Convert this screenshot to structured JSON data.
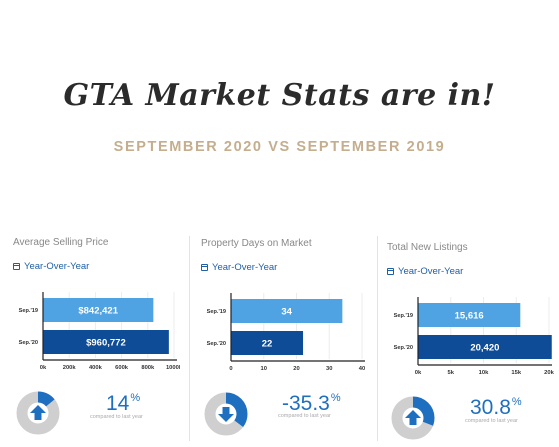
{
  "header": {
    "title": "GTA Market Stats are in!",
    "subtitle": "SEPTEMBER 2020 VS SEPTEMBER 2019"
  },
  "colors": {
    "bar_sep19": "#4fa3e3",
    "bar_sep20": "#0f4c97",
    "donut_track": "#cfcfcf",
    "donut_fill": "#1f6fc0",
    "accent": "#c4ae8e"
  },
  "panels": [
    {
      "title": "Average Selling Price",
      "period_label": "Year-Over-Year",
      "change_value": "14",
      "change_unit": "%",
      "change_fraction": 0.14,
      "direction": "up",
      "compare_text": "compared to last year"
    },
    {
      "title": "Property Days on Market",
      "period_label": "Year-Over-Year",
      "change_value": "-35.3",
      "change_unit": "%",
      "change_fraction": 0.353,
      "direction": "down",
      "compare_text": "compared to last year"
    },
    {
      "title": "Total New Listings",
      "period_label": "Year-Over-Year",
      "change_value": "30.8",
      "change_unit": "%",
      "change_fraction": 0.308,
      "direction": "up",
      "compare_text": "compared to last year"
    }
  ],
  "chart_data": [
    {
      "type": "bar",
      "orientation": "horizontal",
      "categories": [
        "Sep.'19",
        "Sep.'20"
      ],
      "values": [
        842421,
        960772
      ],
      "value_labels": [
        "$842,421",
        "$960,772"
      ],
      "xlim": [
        0,
        1000000
      ],
      "xticks": [
        "0k",
        "200k",
        "400k",
        "600k",
        "800k",
        "1000k"
      ]
    },
    {
      "type": "bar",
      "orientation": "horizontal",
      "categories": [
        "Sep.'19",
        "Sep.'20"
      ],
      "values": [
        34,
        22
      ],
      "value_labels": [
        "34",
        "22"
      ],
      "xlim": [
        0,
        40
      ],
      "xticks": [
        "0",
        "10",
        "20",
        "30",
        "40"
      ]
    },
    {
      "type": "bar",
      "orientation": "horizontal",
      "categories": [
        "Sep.'19",
        "Sep.'20"
      ],
      "values": [
        15616,
        20420
      ],
      "value_labels": [
        "15,616",
        "20,420"
      ],
      "xlim": [
        0,
        20000
      ],
      "xticks": [
        "0k",
        "5k",
        "10k",
        "15k",
        "20k"
      ]
    }
  ]
}
